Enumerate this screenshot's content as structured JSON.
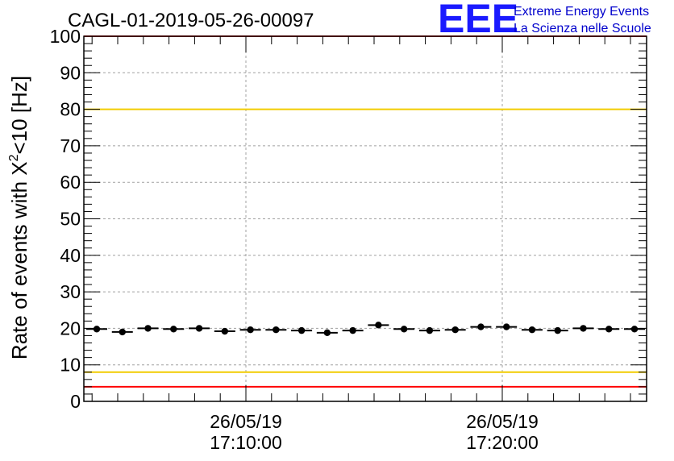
{
  "chart_data": {
    "type": "scatter",
    "title": "CAGL-01-2019-05-26-00097",
    "ylabel_prefix": "Rate of events with X",
    "ylabel_sup": "2",
    "ylabel_suffix": "<10 [Hz]",
    "ylim": [
      0,
      100
    ],
    "yticks": [
      "0",
      "10",
      "20",
      "30",
      "40",
      "50",
      "60",
      "70",
      "80",
      "90",
      "100"
    ],
    "xtick_labels": [
      {
        "date": "26/05/19",
        "time": "17:10:00"
      },
      {
        "date": "26/05/19",
        "time": "17:20:00"
      }
    ],
    "grid": true,
    "series": [
      {
        "values": [
          19.8,
          19.0,
          20.0,
          19.8,
          20.0,
          19.2,
          19.6,
          19.6,
          19.4,
          18.8,
          19.4,
          20.9,
          19.8,
          19.4,
          19.6,
          20.4,
          20.4,
          19.6,
          19.4,
          20.0,
          19.8,
          19.8
        ]
      }
    ],
    "reference_lines": [
      {
        "value": 100,
        "color": "#ff0000"
      },
      {
        "value": 80,
        "color": "#f2cc00"
      },
      {
        "value": 8,
        "color": "#f2cc00"
      },
      {
        "value": 4,
        "color": "#ff0000"
      }
    ]
  },
  "logo": {
    "mark": "EEE",
    "line1": "Extreme Energy Events",
    "line2": "La Scienza nelle Scuole"
  },
  "colors": {
    "logo": "#0000cc",
    "marker": "#000000"
  }
}
